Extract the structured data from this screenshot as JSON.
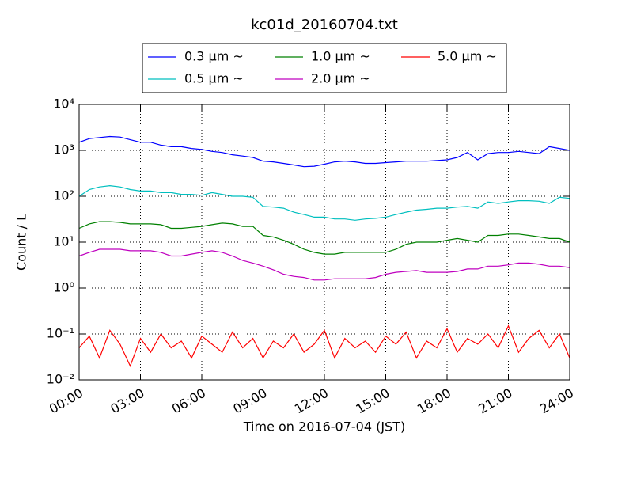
{
  "chart_data": {
    "type": "line",
    "title": "kc01d_20160704.txt",
    "x_label": "Time on 2016-07-04 (JST)",
    "y_label": "Count / L",
    "x": [
      0,
      0.5,
      1,
      1.5,
      2,
      2.5,
      3,
      3.5,
      4,
      4.5,
      5,
      5.5,
      6,
      6.5,
      7,
      7.5,
      8,
      8.5,
      9,
      9.5,
      10,
      10.5,
      11,
      11.5,
      12,
      12.5,
      13,
      13.5,
      14,
      14.5,
      15,
      15.5,
      16,
      16.5,
      17,
      17.5,
      18,
      18.5,
      19,
      19.5,
      20,
      20.5,
      21,
      21.5,
      22,
      22.5,
      23,
      23.5,
      24
    ],
    "series": [
      {
        "name": "0.3 μm ~",
        "color": "#0000ff",
        "values": [
          1500,
          1800,
          1900,
          2000,
          1950,
          1700,
          1500,
          1500,
          1300,
          1200,
          1200,
          1100,
          1050,
          950,
          900,
          800,
          750,
          700,
          580,
          560,
          520,
          480,
          440,
          450,
          500,
          560,
          580,
          560,
          520,
          520,
          540,
          560,
          580,
          580,
          580,
          600,
          620,
          700,
          900,
          620,
          850,
          900,
          900,
          950,
          900,
          850,
          1200,
          1100,
          1000
        ]
      },
      {
        "name": "0.5 μm ~",
        "color": "#00bfbf",
        "values": [
          100,
          140,
          160,
          170,
          160,
          140,
          130,
          130,
          120,
          120,
          110,
          110,
          105,
          120,
          110,
          100,
          100,
          95,
          60,
          58,
          55,
          45,
          40,
          35,
          35,
          32,
          32,
          30,
          32,
          33,
          35,
          40,
          45,
          50,
          52,
          55,
          55,
          58,
          60,
          55,
          75,
          70,
          75,
          80,
          80,
          78,
          70,
          95,
          90
        ]
      },
      {
        "name": "1.0 μm ~",
        "color": "#008000",
        "values": [
          20,
          25,
          28,
          28,
          27,
          25,
          25,
          25,
          24,
          20,
          20,
          21,
          22,
          24,
          26,
          25,
          22,
          22,
          14,
          13,
          11,
          9,
          7,
          6,
          5.5,
          5.5,
          6,
          6,
          6,
          6,
          6,
          7,
          9,
          10,
          10,
          10,
          11,
          12,
          11,
          10,
          14,
          14,
          15,
          15,
          14,
          13,
          12,
          12,
          10
        ]
      },
      {
        "name": "2.0 μm ~",
        "color": "#bf00bf",
        "values": [
          5,
          6,
          7,
          7,
          7,
          6.5,
          6.5,
          6.5,
          6,
          5,
          5,
          5.5,
          6,
          6.5,
          6,
          5,
          4,
          3.5,
          3,
          2.5,
          2,
          1.8,
          1.7,
          1.5,
          1.5,
          1.6,
          1.6,
          1.6,
          1.6,
          1.7,
          2,
          2.2,
          2.3,
          2.4,
          2.2,
          2.2,
          2.2,
          2.3,
          2.6,
          2.6,
          3,
          3,
          3.2,
          3.5,
          3.5,
          3.3,
          3,
          3,
          2.8
        ]
      },
      {
        "name": "5.0 μm ~",
        "color": "#ff0000",
        "values": [
          0.05,
          0.09,
          0.03,
          0.12,
          0.06,
          0.02,
          0.08,
          0.04,
          0.1,
          0.05,
          0.07,
          0.03,
          0.09,
          0.06,
          0.04,
          0.11,
          0.05,
          0.08,
          0.03,
          0.07,
          0.05,
          0.1,
          0.04,
          0.06,
          0.12,
          0.03,
          0.08,
          0.05,
          0.07,
          0.04,
          0.09,
          0.06,
          0.11,
          0.03,
          0.07,
          0.05,
          0.13,
          0.04,
          0.08,
          0.06,
          0.1,
          0.05,
          0.15,
          0.04,
          0.08,
          0.12,
          0.05,
          0.1,
          0.03
        ]
      }
    ],
    "xlim": [
      0,
      24
    ],
    "xticks": [
      {
        "value": 0,
        "label": "00:00"
      },
      {
        "value": 3,
        "label": "03:00"
      },
      {
        "value": 6,
        "label": "06:00"
      },
      {
        "value": 9,
        "label": "09:00"
      },
      {
        "value": 12,
        "label": "12:00"
      },
      {
        "value": 15,
        "label": "15:00"
      },
      {
        "value": 18,
        "label": "18:00"
      },
      {
        "value": 21,
        "label": "21:00"
      },
      {
        "value": 24,
        "label": "24:00"
      }
    ],
    "ylim": [
      0.01,
      10000
    ],
    "yticks": [
      {
        "value": 0.01,
        "label": "10⁻²"
      },
      {
        "value": 0.1,
        "label": "10⁻¹"
      },
      {
        "value": 1,
        "label": "10⁰"
      },
      {
        "value": 10,
        "label": "10¹"
      },
      {
        "value": 100,
        "label": "10²"
      },
      {
        "value": 1000,
        "label": "10³"
      },
      {
        "value": 10000,
        "label": "10⁴"
      }
    ],
    "log_y": true,
    "grid": true,
    "legend_position": "top"
  }
}
